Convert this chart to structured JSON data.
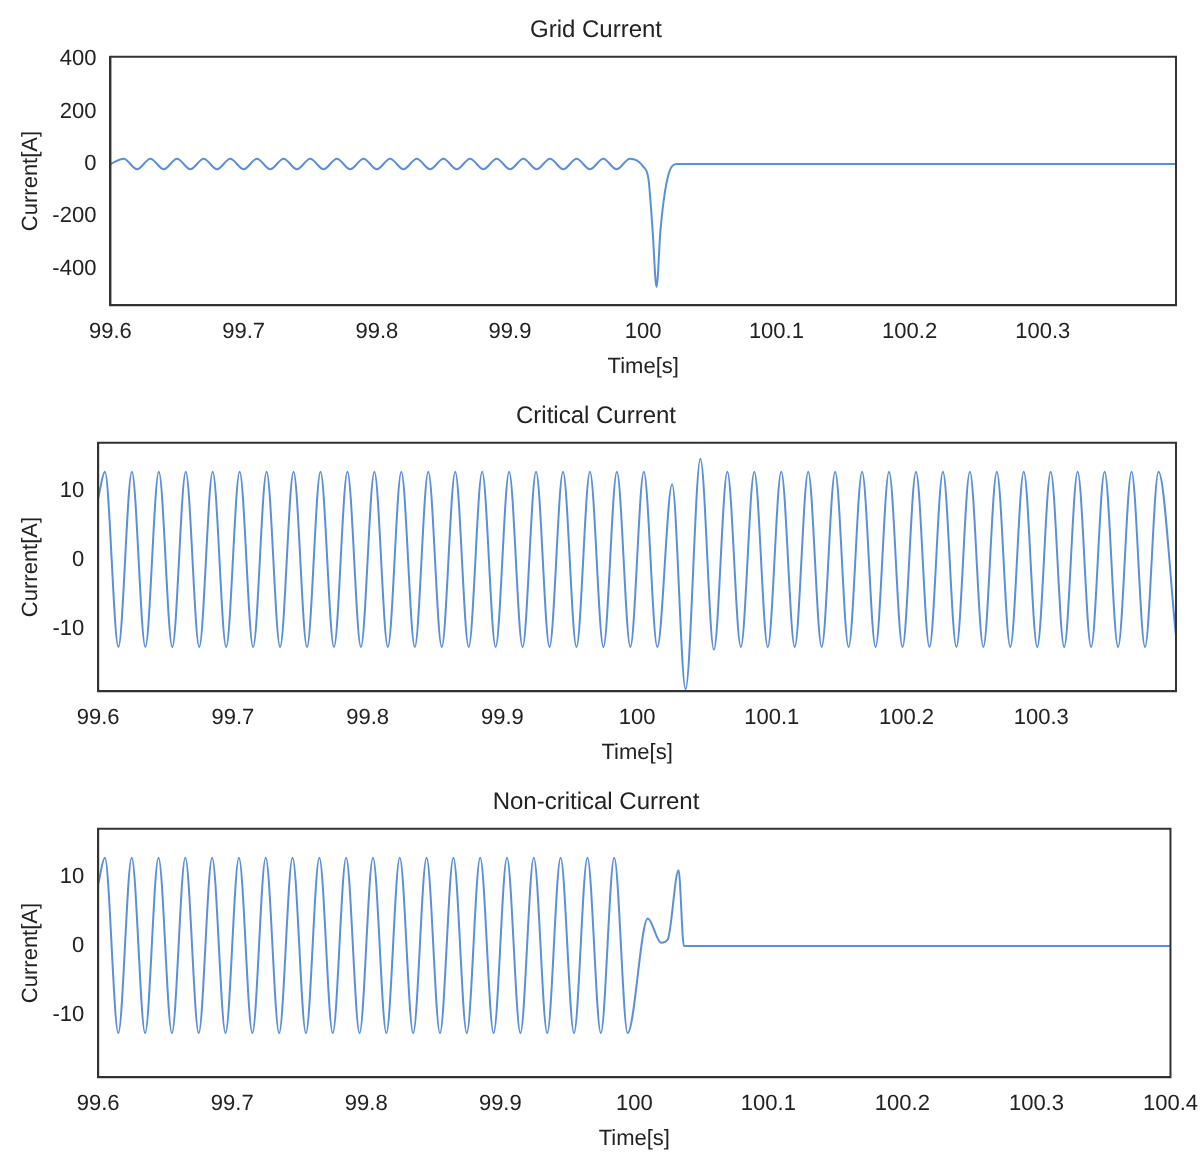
{
  "chart_data": [
    {
      "type": "line",
      "title": "Grid Current",
      "xlabel": "Time[s]",
      "ylabel": "Current[A]",
      "xlim": [
        99.6,
        100.4
      ],
      "xticks": [
        99.6,
        99.7,
        99.8,
        99.9,
        100,
        100.1,
        100.2,
        100.3
      ],
      "ylim": [
        -540,
        410
      ],
      "yticks": [
        -400,
        -200,
        0,
        200,
        400
      ],
      "x": [
        99.6,
        99.61,
        99.62,
        99.63,
        99.64,
        99.65,
        99.66,
        99.67,
        99.68,
        99.69,
        99.7,
        99.71,
        99.72,
        99.73,
        99.74,
        99.75,
        99.76,
        99.77,
        99.78,
        99.79,
        99.8,
        99.81,
        99.82,
        99.83,
        99.84,
        99.85,
        99.86,
        99.87,
        99.88,
        99.89,
        99.9,
        99.91,
        99.92,
        99.93,
        99.94,
        99.95,
        99.96,
        99.97,
        99.98,
        99.99,
        100.0,
        100.004,
        100.007,
        100.01,
        100.013,
        100.018,
        100.025,
        100.4
      ],
      "series": [
        {
          "color": "#5b8fd9",
          "values": [
            0,
            20,
            -20,
            20,
            -20,
            20,
            -20,
            20,
            -20,
            20,
            -20,
            20,
            -20,
            20,
            -20,
            20,
            -20,
            20,
            -20,
            20,
            -20,
            20,
            -20,
            20,
            -20,
            20,
            -20,
            20,
            -20,
            20,
            -20,
            20,
            -20,
            20,
            -20,
            20,
            -20,
            20,
            -20,
            20,
            -10,
            -60,
            -250,
            -470,
            -250,
            -60,
            0,
            0
          ]
        }
      ]
    },
    {
      "type": "line",
      "title": "Critical Current",
      "xlabel": "Time[s]",
      "ylabel": "Current[A]",
      "xlim": [
        99.6,
        100.4
      ],
      "xticks": [
        99.6,
        99.7,
        99.8,
        99.9,
        100,
        100.1,
        100.2,
        100.3
      ],
      "ylim": [
        -19,
        17
      ],
      "yticks": [
        -10,
        0,
        10
      ],
      "x": [
        99.6,
        99.605,
        99.615,
        99.625,
        99.635,
        99.645,
        99.655,
        99.665,
        99.675,
        99.685,
        99.695,
        99.705,
        99.715,
        99.725,
        99.735,
        99.745,
        99.755,
        99.765,
        99.775,
        99.785,
        99.795,
        99.805,
        99.815,
        99.825,
        99.835,
        99.845,
        99.855,
        99.865,
        99.875,
        99.885,
        99.895,
        99.905,
        99.915,
        99.925,
        99.935,
        99.945,
        99.955,
        99.965,
        99.975,
        99.985,
        99.995,
        100.005,
        100.015,
        100.026,
        100.036,
        100.047,
        100.057,
        100.067,
        100.077,
        100.087,
        100.097,
        100.107,
        100.117,
        100.127,
        100.137,
        100.147,
        100.157,
        100.167,
        100.177,
        100.187,
        100.197,
        100.207,
        100.217,
        100.227,
        100.237,
        100.247,
        100.257,
        100.267,
        100.277,
        100.287,
        100.297,
        100.307,
        100.317,
        100.327,
        100.337,
        100.347,
        100.357,
        100.367,
        100.377,
        100.387,
        100.4
      ],
      "series": [
        {
          "color": "#5b8fd9",
          "values": [
            9,
            12.8,
            -12.6,
            12.8,
            -12.6,
            12.8,
            -12.6,
            12.8,
            -12.6,
            12.8,
            -12.6,
            12.8,
            -12.6,
            12.8,
            -12.6,
            12.8,
            -12.6,
            12.8,
            -12.6,
            12.8,
            -12.6,
            12.8,
            -12.6,
            12.8,
            -12.6,
            12.8,
            -12.6,
            12.8,
            -12.6,
            12.8,
            -12.6,
            12.8,
            -12.6,
            12.8,
            -12.6,
            12.8,
            -12.6,
            12.8,
            -12.6,
            12.8,
            -12.6,
            12.8,
            -12.6,
            11,
            -18.7,
            14.7,
            -13,
            12.8,
            -12.6,
            12.8,
            -12.6,
            12.8,
            -12.6,
            12.8,
            -12.6,
            12.8,
            -12.6,
            12.8,
            -12.6,
            12.8,
            -12.6,
            12.8,
            -12.6,
            12.8,
            -12.6,
            12.8,
            -12.6,
            12.8,
            -12.6,
            12.8,
            -12.6,
            12.8,
            -12.6,
            12.8,
            -12.6,
            12.8,
            -12.6,
            12.8,
            -12.6,
            12.8,
            -11
          ]
        }
      ]
    },
    {
      "type": "line",
      "title": "Non-critical Current",
      "xlabel": "Time[s]",
      "ylabel": "Current[A]",
      "xlim": [
        99.6,
        100.4
      ],
      "xticks": [
        99.6,
        99.7,
        99.8,
        99.9,
        100,
        100.1,
        100.2,
        100.3,
        100.4
      ],
      "ylim": [
        -19,
        17
      ],
      "yticks": [
        -10,
        0,
        10
      ],
      "x": [
        99.6,
        99.605,
        99.615,
        99.625,
        99.635,
        99.645,
        99.655,
        99.665,
        99.675,
        99.685,
        99.695,
        99.705,
        99.715,
        99.725,
        99.735,
        99.745,
        99.755,
        99.765,
        99.775,
        99.785,
        99.795,
        99.805,
        99.815,
        99.825,
        99.835,
        99.845,
        99.855,
        99.865,
        99.875,
        99.885,
        99.895,
        99.905,
        99.915,
        99.925,
        99.935,
        99.945,
        99.955,
        99.965,
        99.975,
        99.985,
        99.995,
        100.01,
        100.02,
        100.025,
        100.033,
        100.037,
        100.4
      ],
      "series": [
        {
          "color": "#5b8fd9",
          "values": [
            9,
            12.8,
            -12.6,
            12.8,
            -12.6,
            12.8,
            -12.6,
            12.8,
            -12.6,
            12.8,
            -12.6,
            12.8,
            -12.6,
            12.8,
            -12.6,
            12.8,
            -12.6,
            12.8,
            -12.6,
            12.8,
            -12.6,
            12.8,
            -12.6,
            12.8,
            -12.6,
            12.8,
            -12.6,
            12.8,
            -12.6,
            12.8,
            -12.6,
            12.8,
            -12.6,
            12.8,
            -12.6,
            12.8,
            -12.6,
            12.8,
            -12.6,
            12.8,
            -12.6,
            4,
            0.5,
            1,
            11,
            0,
            0
          ]
        }
      ]
    }
  ]
}
